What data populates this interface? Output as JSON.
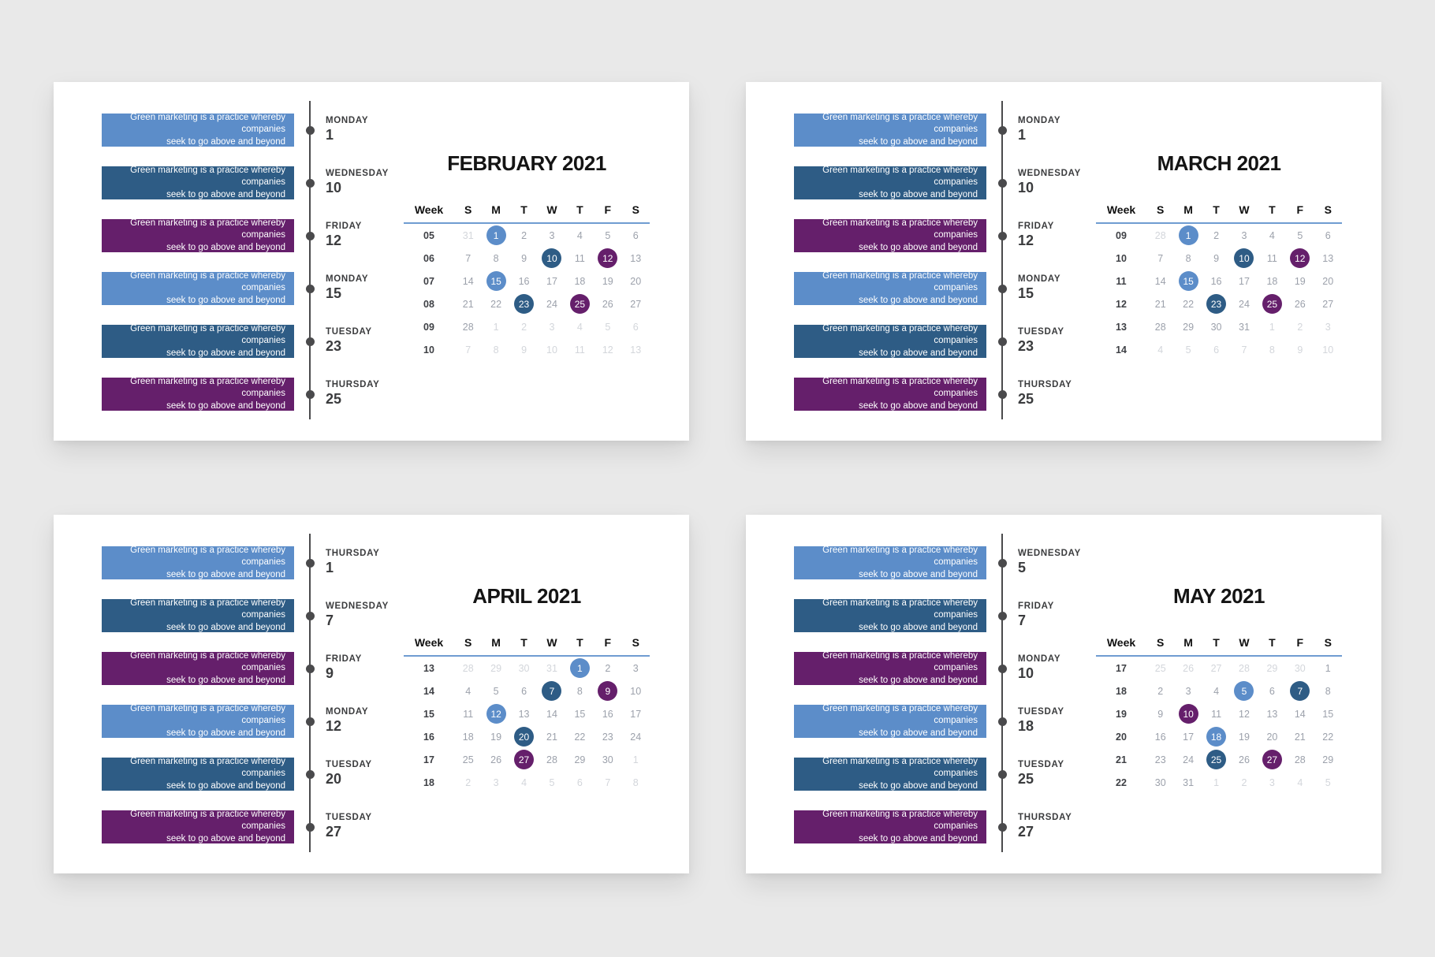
{
  "page": {
    "background": "#E9E9E9"
  },
  "colors": {
    "light_blue": "#5C8DC9",
    "dark_blue": "#2E5C85",
    "purple": "#651F6B",
    "header_underline": "#6F9CD1",
    "timeline": "#4A4A4C",
    "day_number": "#9CA1AB",
    "muted_day_number": "#D3D6DB"
  },
  "event_note": {
    "line1": "Green marketing is a practice whereby companies",
    "line2": "seek to go above and beyond"
  },
  "grid_headers": {
    "week": "Week",
    "days": [
      "S",
      "M",
      "T",
      "W",
      "T",
      "F",
      "S"
    ]
  },
  "calendars": [
    {
      "title": "FEBRUARY 2021",
      "events": [
        {
          "weekday": "MONDAY",
          "date": "1",
          "color": "light_blue"
        },
        {
          "weekday": "WEDNESDAY",
          "date": "10",
          "color": "dark_blue"
        },
        {
          "weekday": "FRIDAY",
          "date": "12",
          "color": "purple"
        },
        {
          "weekday": "MONDAY",
          "date": "15",
          "color": "light_blue"
        },
        {
          "weekday": "TUESDAY",
          "date": "23",
          "color": "dark_blue"
        },
        {
          "weekday": "THURSDAY",
          "date": "25",
          "color": "purple"
        }
      ],
      "weeks": [
        {
          "week": "05",
          "days": [
            {
              "n": "31",
              "s": "muted"
            },
            {
              "n": "1",
              "s": "light_blue"
            },
            {
              "n": "2"
            },
            {
              "n": "3"
            },
            {
              "n": "4"
            },
            {
              "n": "5"
            },
            {
              "n": "6"
            }
          ]
        },
        {
          "week": "06",
          "days": [
            {
              "n": "7"
            },
            {
              "n": "8"
            },
            {
              "n": "9"
            },
            {
              "n": "10",
              "s": "dark_blue"
            },
            {
              "n": "11"
            },
            {
              "n": "12",
              "s": "purple"
            },
            {
              "n": "13"
            }
          ]
        },
        {
          "week": "07",
          "days": [
            {
              "n": "14"
            },
            {
              "n": "15",
              "s": "light_blue"
            },
            {
              "n": "16"
            },
            {
              "n": "17"
            },
            {
              "n": "18"
            },
            {
              "n": "19"
            },
            {
              "n": "20"
            }
          ]
        },
        {
          "week": "08",
          "days": [
            {
              "n": "21"
            },
            {
              "n": "22"
            },
            {
              "n": "23",
              "s": "dark_blue"
            },
            {
              "n": "24"
            },
            {
              "n": "25",
              "s": "purple"
            },
            {
              "n": "26"
            },
            {
              "n": "27"
            }
          ]
        },
        {
          "week": "09",
          "days": [
            {
              "n": "28"
            },
            {
              "n": "1",
              "s": "muted"
            },
            {
              "n": "2",
              "s": "muted"
            },
            {
              "n": "3",
              "s": "muted"
            },
            {
              "n": "4",
              "s": "muted"
            },
            {
              "n": "5",
              "s": "muted"
            },
            {
              "n": "6",
              "s": "muted"
            }
          ]
        },
        {
          "week": "10",
          "days": [
            {
              "n": "7",
              "s": "muted"
            },
            {
              "n": "8",
              "s": "muted"
            },
            {
              "n": "9",
              "s": "muted"
            },
            {
              "n": "10",
              "s": "muted"
            },
            {
              "n": "11",
              "s": "muted"
            },
            {
              "n": "12",
              "s": "muted"
            },
            {
              "n": "13",
              "s": "muted"
            }
          ]
        }
      ]
    },
    {
      "title": "MARCH 2021",
      "events": [
        {
          "weekday": "MONDAY",
          "date": "1",
          "color": "light_blue"
        },
        {
          "weekday": "WEDNESDAY",
          "date": "10",
          "color": "dark_blue"
        },
        {
          "weekday": "FRIDAY",
          "date": "12",
          "color": "purple"
        },
        {
          "weekday": "MONDAY",
          "date": "15",
          "color": "light_blue"
        },
        {
          "weekday": "TUESDAY",
          "date": "23",
          "color": "dark_blue"
        },
        {
          "weekday": "THURSDAY",
          "date": "25",
          "color": "purple"
        }
      ],
      "weeks": [
        {
          "week": "09",
          "days": [
            {
              "n": "28",
              "s": "muted"
            },
            {
              "n": "1",
              "s": "light_blue"
            },
            {
              "n": "2"
            },
            {
              "n": "3"
            },
            {
              "n": "4"
            },
            {
              "n": "5"
            },
            {
              "n": "6"
            }
          ]
        },
        {
          "week": "10",
          "days": [
            {
              "n": "7"
            },
            {
              "n": "8"
            },
            {
              "n": "9"
            },
            {
              "n": "10",
              "s": "dark_blue"
            },
            {
              "n": "11"
            },
            {
              "n": "12",
              "s": "purple"
            },
            {
              "n": "13"
            }
          ]
        },
        {
          "week": "11",
          "days": [
            {
              "n": "14"
            },
            {
              "n": "15",
              "s": "light_blue"
            },
            {
              "n": "16"
            },
            {
              "n": "17"
            },
            {
              "n": "18"
            },
            {
              "n": "19"
            },
            {
              "n": "20"
            }
          ]
        },
        {
          "week": "12",
          "days": [
            {
              "n": "21"
            },
            {
              "n": "22"
            },
            {
              "n": "23",
              "s": "dark_blue"
            },
            {
              "n": "24"
            },
            {
              "n": "25",
              "s": "purple"
            },
            {
              "n": "26"
            },
            {
              "n": "27"
            }
          ]
        },
        {
          "week": "13",
          "days": [
            {
              "n": "28"
            },
            {
              "n": "29"
            },
            {
              "n": "30"
            },
            {
              "n": "31"
            },
            {
              "n": "1",
              "s": "muted"
            },
            {
              "n": "2",
              "s": "muted"
            },
            {
              "n": "3",
              "s": "muted"
            }
          ]
        },
        {
          "week": "14",
          "days": [
            {
              "n": "4",
              "s": "muted"
            },
            {
              "n": "5",
              "s": "muted"
            },
            {
              "n": "6",
              "s": "muted"
            },
            {
              "n": "7",
              "s": "muted"
            },
            {
              "n": "8",
              "s": "muted"
            },
            {
              "n": "9",
              "s": "muted"
            },
            {
              "n": "10",
              "s": "muted"
            }
          ]
        }
      ]
    },
    {
      "title": "APRIL 2021",
      "events": [
        {
          "weekday": "THURSDAY",
          "date": "1",
          "color": "light_blue"
        },
        {
          "weekday": "WEDNESDAY",
          "date": "7",
          "color": "dark_blue"
        },
        {
          "weekday": "FRIDAY",
          "date": "9",
          "color": "purple"
        },
        {
          "weekday": "MONDAY",
          "date": "12",
          "color": "light_blue"
        },
        {
          "weekday": "TUESDAY",
          "date": "20",
          "color": "dark_blue"
        },
        {
          "weekday": "TUESDAY",
          "date": "27",
          "color": "purple"
        }
      ],
      "weeks": [
        {
          "week": "13",
          "days": [
            {
              "n": "28",
              "s": "muted"
            },
            {
              "n": "29",
              "s": "muted"
            },
            {
              "n": "30",
              "s": "muted"
            },
            {
              "n": "31",
              "s": "muted"
            },
            {
              "n": "1",
              "s": "light_blue"
            },
            {
              "n": "2"
            },
            {
              "n": "3"
            }
          ]
        },
        {
          "week": "14",
          "days": [
            {
              "n": "4"
            },
            {
              "n": "5"
            },
            {
              "n": "6"
            },
            {
              "n": "7",
              "s": "dark_blue"
            },
            {
              "n": "8"
            },
            {
              "n": "9",
              "s": "purple"
            },
            {
              "n": "10"
            }
          ]
        },
        {
          "week": "15",
          "days": [
            {
              "n": "11"
            },
            {
              "n": "12",
              "s": "light_blue"
            },
            {
              "n": "13"
            },
            {
              "n": "14"
            },
            {
              "n": "15"
            },
            {
              "n": "16"
            },
            {
              "n": "17"
            }
          ]
        },
        {
          "week": "16",
          "days": [
            {
              "n": "18"
            },
            {
              "n": "19"
            },
            {
              "n": "20",
              "s": "dark_blue"
            },
            {
              "n": "21"
            },
            {
              "n": "22"
            },
            {
              "n": "23"
            },
            {
              "n": "24"
            }
          ]
        },
        {
          "week": "17",
          "days": [
            {
              "n": "25"
            },
            {
              "n": "26"
            },
            {
              "n": "27",
              "s": "purple"
            },
            {
              "n": "28"
            },
            {
              "n": "29"
            },
            {
              "n": "30"
            },
            {
              "n": "1",
              "s": "muted"
            }
          ]
        },
        {
          "week": "18",
          "days": [
            {
              "n": "2",
              "s": "muted"
            },
            {
              "n": "3",
              "s": "muted"
            },
            {
              "n": "4",
              "s": "muted"
            },
            {
              "n": "5",
              "s": "muted"
            },
            {
              "n": "6",
              "s": "muted"
            },
            {
              "n": "7",
              "s": "muted"
            },
            {
              "n": "8",
              "s": "muted"
            }
          ]
        }
      ]
    },
    {
      "title": "MAY 2021",
      "events": [
        {
          "weekday": "WEDNESDAY",
          "date": "5",
          "color": "light_blue"
        },
        {
          "weekday": "FRIDAY",
          "date": "7",
          "color": "dark_blue"
        },
        {
          "weekday": "MONDAY",
          "date": "10",
          "color": "purple"
        },
        {
          "weekday": "TUESDAY",
          "date": "18",
          "color": "light_blue"
        },
        {
          "weekday": "TUESDAY",
          "date": "25",
          "color": "dark_blue"
        },
        {
          "weekday": "THURSDAY",
          "date": "27",
          "color": "purple"
        }
      ],
      "weeks": [
        {
          "week": "17",
          "days": [
            {
              "n": "25",
              "s": "muted"
            },
            {
              "n": "26",
              "s": "muted"
            },
            {
              "n": "27",
              "s": "muted"
            },
            {
              "n": "28",
              "s": "muted"
            },
            {
              "n": "29",
              "s": "muted"
            },
            {
              "n": "30",
              "s": "muted"
            },
            {
              "n": "1"
            }
          ]
        },
        {
          "week": "18",
          "days": [
            {
              "n": "2"
            },
            {
              "n": "3"
            },
            {
              "n": "4"
            },
            {
              "n": "5",
              "s": "light_blue"
            },
            {
              "n": "6"
            },
            {
              "n": "7",
              "s": "dark_blue"
            },
            {
              "n": "8"
            }
          ]
        },
        {
          "week": "19",
          "days": [
            {
              "n": "9"
            },
            {
              "n": "10",
              "s": "purple"
            },
            {
              "n": "11"
            },
            {
              "n": "12"
            },
            {
              "n": "13"
            },
            {
              "n": "14"
            },
            {
              "n": "15"
            }
          ]
        },
        {
          "week": "20",
          "days": [
            {
              "n": "16"
            },
            {
              "n": "17"
            },
            {
              "n": "18",
              "s": "light_blue"
            },
            {
              "n": "19"
            },
            {
              "n": "20"
            },
            {
              "n": "21"
            },
            {
              "n": "22"
            }
          ]
        },
        {
          "week": "21",
          "days": [
            {
              "n": "23"
            },
            {
              "n": "24"
            },
            {
              "n": "25",
              "s": "dark_blue"
            },
            {
              "n": "26"
            },
            {
              "n": "27",
              "s": "purple"
            },
            {
              "n": "28"
            },
            {
              "n": "29"
            }
          ]
        },
        {
          "week": "22",
          "days": [
            {
              "n": "30"
            },
            {
              "n": "31"
            },
            {
              "n": "1",
              "s": "muted"
            },
            {
              "n": "2",
              "s": "muted"
            },
            {
              "n": "3",
              "s": "muted"
            },
            {
              "n": "4",
              "s": "muted"
            },
            {
              "n": "5",
              "s": "muted"
            }
          ]
        }
      ]
    }
  ]
}
